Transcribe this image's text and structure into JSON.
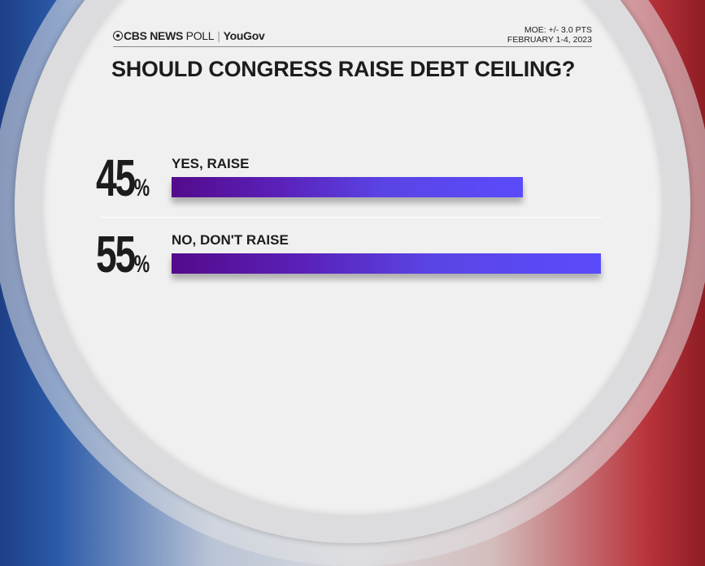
{
  "header": {
    "brand": "CBS NEWS",
    "poll": "POLL",
    "separator": "|",
    "partner": "YouGov",
    "moe": "MOE: +/- 3.0 PTS",
    "dates": "FEBRUARY 1-4, 2023"
  },
  "colors": {
    "bar_start": "#540b8c",
    "bar_end": "#5a4bfb",
    "frame_left": "#1d3f86",
    "frame_right": "#8e1d24"
  },
  "chart_data": {
    "type": "bar",
    "orientation": "horizontal",
    "title": "SHOULD CONGRESS RAISE DEBT CEILING?",
    "categories": [
      "YES, RAISE",
      "NO, DON'T RAISE"
    ],
    "values": [
      45,
      55
    ],
    "value_labels": [
      "45",
      "55"
    ],
    "unit": "%"
  }
}
